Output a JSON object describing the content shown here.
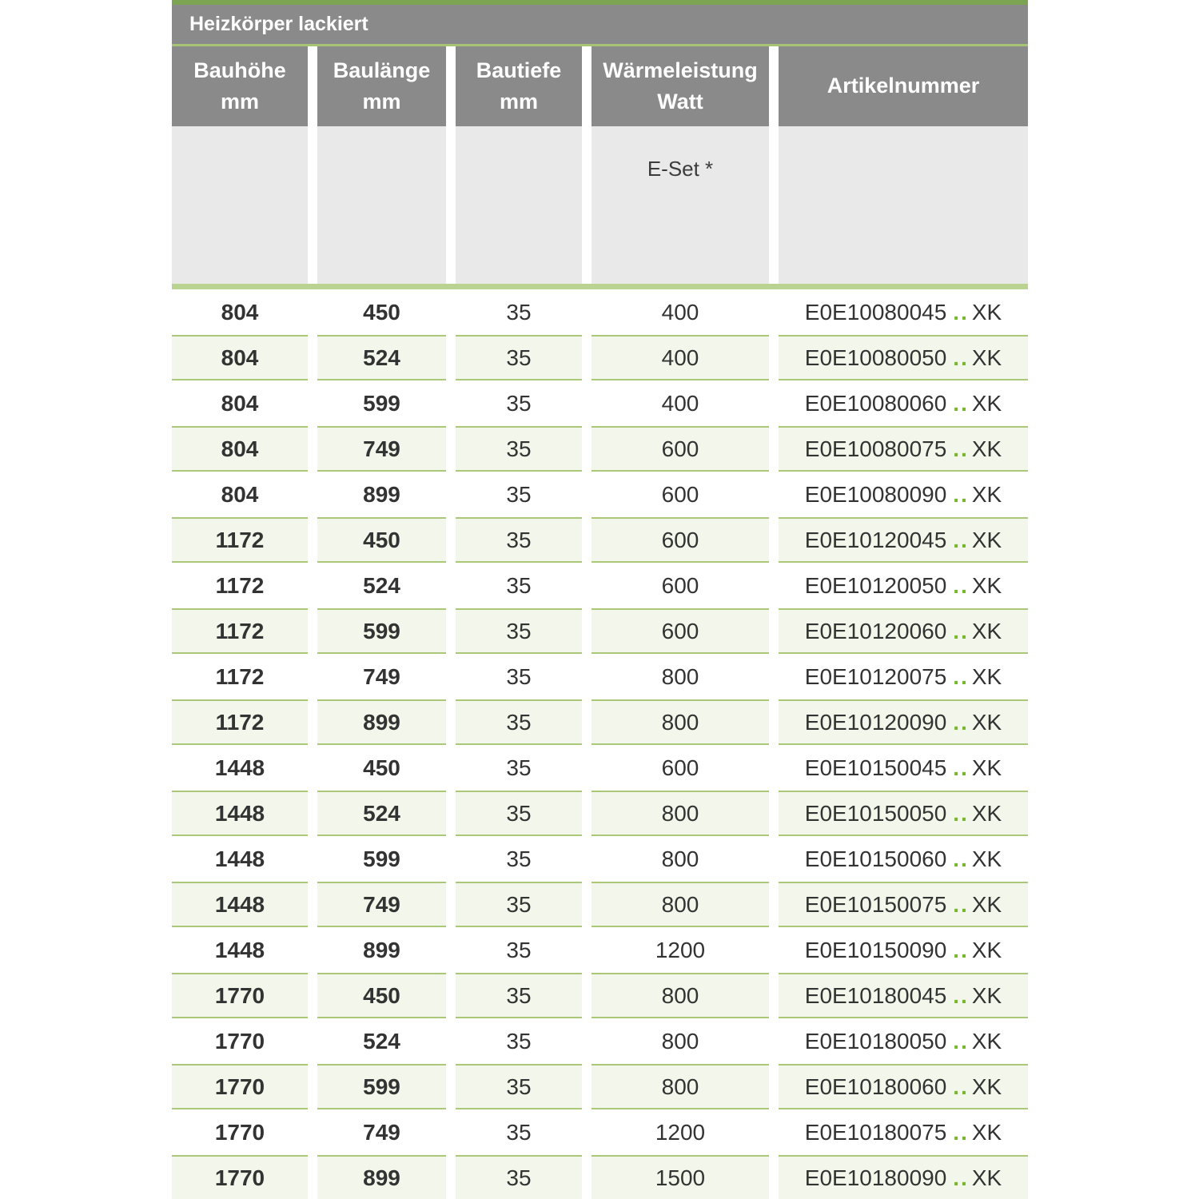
{
  "table": {
    "title": "Heizkörper lackiert",
    "columns": [
      {
        "lines": [
          "Bauhöhe",
          "mm"
        ]
      },
      {
        "lines": [
          "Baulänge",
          "mm"
        ]
      },
      {
        "lines": [
          "Bautiefe",
          "mm"
        ]
      },
      {
        "lines": [
          "Wärmeleistung",
          "Watt"
        ]
      },
      {
        "lines": [
          "Artikelnummer"
        ]
      }
    ],
    "subheader": {
      "e_set_label": "E-Set *"
    },
    "rows": [
      {
        "bauhoehe": "804",
        "baulaenge": "450",
        "bautiefe": "35",
        "watt": "400",
        "artikel_code": "E0E10080045",
        "artikel_dots": "..",
        "artikel_suffix": "XK"
      },
      {
        "bauhoehe": "804",
        "baulaenge": "524",
        "bautiefe": "35",
        "watt": "400",
        "artikel_code": "E0E10080050",
        "artikel_dots": "..",
        "artikel_suffix": "XK"
      },
      {
        "bauhoehe": "804",
        "baulaenge": "599",
        "bautiefe": "35",
        "watt": "400",
        "artikel_code": "E0E10080060",
        "artikel_dots": "..",
        "artikel_suffix": "XK"
      },
      {
        "bauhoehe": "804",
        "baulaenge": "749",
        "bautiefe": "35",
        "watt": "600",
        "artikel_code": "E0E10080075",
        "artikel_dots": "..",
        "artikel_suffix": "XK"
      },
      {
        "bauhoehe": "804",
        "baulaenge": "899",
        "bautiefe": "35",
        "watt": "600",
        "artikel_code": "E0E10080090",
        "artikel_dots": "..",
        "artikel_suffix": "XK"
      },
      {
        "bauhoehe": "1172",
        "baulaenge": "450",
        "bautiefe": "35",
        "watt": "600",
        "artikel_code": "E0E10120045",
        "artikel_dots": "..",
        "artikel_suffix": "XK"
      },
      {
        "bauhoehe": "1172",
        "baulaenge": "524",
        "bautiefe": "35",
        "watt": "600",
        "artikel_code": "E0E10120050",
        "artikel_dots": "..",
        "artikel_suffix": "XK"
      },
      {
        "bauhoehe": "1172",
        "baulaenge": "599",
        "bautiefe": "35",
        "watt": "600",
        "artikel_code": "E0E10120060",
        "artikel_dots": "..",
        "artikel_suffix": "XK"
      },
      {
        "bauhoehe": "1172",
        "baulaenge": "749",
        "bautiefe": "35",
        "watt": "800",
        "artikel_code": "E0E10120075",
        "artikel_dots": "..",
        "artikel_suffix": "XK"
      },
      {
        "bauhoehe": "1172",
        "baulaenge": "899",
        "bautiefe": "35",
        "watt": "800",
        "artikel_code": "E0E10120090",
        "artikel_dots": "..",
        "artikel_suffix": "XK"
      },
      {
        "bauhoehe": "1448",
        "baulaenge": "450",
        "bautiefe": "35",
        "watt": "600",
        "artikel_code": "E0E10150045",
        "artikel_dots": "..",
        "artikel_suffix": "XK"
      },
      {
        "bauhoehe": "1448",
        "baulaenge": "524",
        "bautiefe": "35",
        "watt": "800",
        "artikel_code": "E0E10150050",
        "artikel_dots": "..",
        "artikel_suffix": "XK"
      },
      {
        "bauhoehe": "1448",
        "baulaenge": "599",
        "bautiefe": "35",
        "watt": "800",
        "artikel_code": "E0E10150060",
        "artikel_dots": "..",
        "artikel_suffix": "XK"
      },
      {
        "bauhoehe": "1448",
        "baulaenge": "749",
        "bautiefe": "35",
        "watt": "800",
        "artikel_code": "E0E10150075",
        "artikel_dots": "..",
        "artikel_suffix": "XK"
      },
      {
        "bauhoehe": "1448",
        "baulaenge": "899",
        "bautiefe": "35",
        "watt": "1200",
        "artikel_code": "E0E10150090",
        "artikel_dots": "..",
        "artikel_suffix": "XK"
      },
      {
        "bauhoehe": "1770",
        "baulaenge": "450",
        "bautiefe": "35",
        "watt": "800",
        "artikel_code": "E0E10180045",
        "artikel_dots": "..",
        "artikel_suffix": "XK"
      },
      {
        "bauhoehe": "1770",
        "baulaenge": "524",
        "bautiefe": "35",
        "watt": "800",
        "artikel_code": "E0E10180050",
        "artikel_dots": "..",
        "artikel_suffix": "XK"
      },
      {
        "bauhoehe": "1770",
        "baulaenge": "599",
        "bautiefe": "35",
        "watt": "800",
        "artikel_code": "E0E10180060",
        "artikel_dots": "..",
        "artikel_suffix": "XK"
      },
      {
        "bauhoehe": "1770",
        "baulaenge": "749",
        "bautiefe": "35",
        "watt": "1200",
        "artikel_code": "E0E10180075",
        "artikel_dots": "..",
        "artikel_suffix": "XK"
      },
      {
        "bauhoehe": "1770",
        "baulaenge": "899",
        "bautiefe": "35",
        "watt": "1500",
        "artikel_code": "E0E10180090",
        "artikel_dots": "..",
        "artikel_suffix": "XK"
      }
    ],
    "colors": {
      "top_bar_green": "#7da452",
      "title_bar_gray": "#8a8a8a",
      "thin_line_green": "#a6c573",
      "subheader_gray": "#e9e9e9",
      "thick_line_green": "#bad391",
      "shaded_row_bg": "#f3f6ea",
      "shaded_row_border": "#aac878",
      "dots_green": "#76b82a",
      "text_dark": "#333333"
    }
  }
}
